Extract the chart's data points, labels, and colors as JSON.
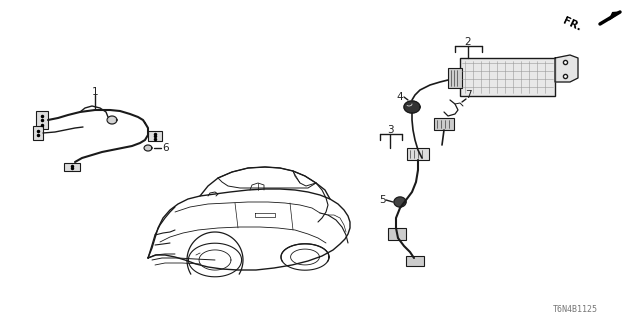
{
  "background_color": "#ffffff",
  "diagram_number": "T6N4B1125",
  "fr_label": "FR.",
  "fig_width": 6.4,
  "fig_height": 3.2,
  "dpi": 100,
  "text_color": "#222222",
  "line_color": "#1a1a1a",
  "label_color": "#333333"
}
